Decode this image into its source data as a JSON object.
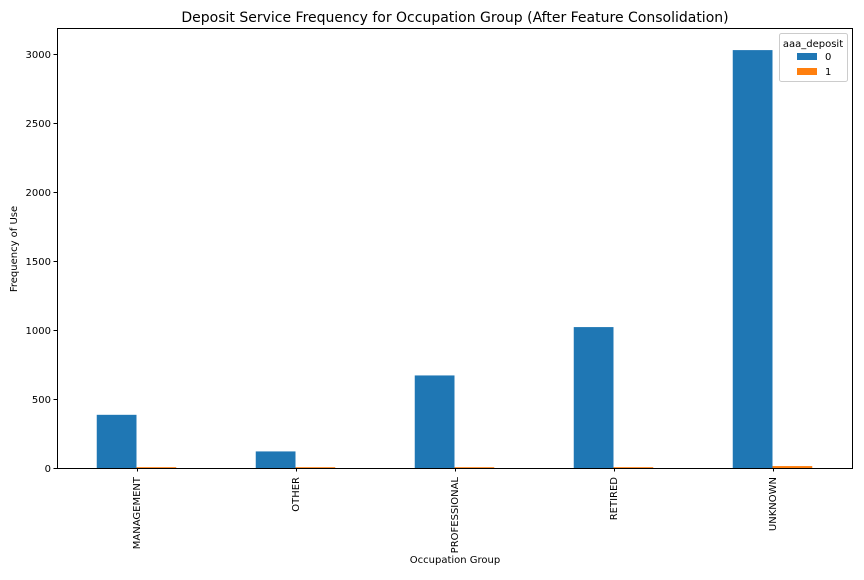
{
  "chart_data": {
    "type": "bar",
    "title": "Deposit Service Frequency for Occupation Group (After Feature Consolidation)",
    "xlabel": "Occupation Group",
    "ylabel": "Frequency of Use",
    "categories": [
      "MANAGEMENT",
      "OTHER",
      "PROFESSIONAL",
      "RETIRED",
      "UNKNOWN"
    ],
    "series": [
      {
        "name": "0",
        "values": [
          385,
          120,
          670,
          1020,
          3025
        ],
        "color": "#1f77b4"
      },
      {
        "name": "1",
        "values": [
          6,
          1,
          5,
          6,
          14
        ],
        "color": "#ff7f0e"
      }
    ],
    "ylim": [
      0,
      3185
    ],
    "yticks": [
      0,
      500,
      1000,
      1500,
      2000,
      2500,
      3000
    ],
    "legend": {
      "title": "aaa_deposit",
      "placement": "top-right"
    },
    "grid": false
  }
}
